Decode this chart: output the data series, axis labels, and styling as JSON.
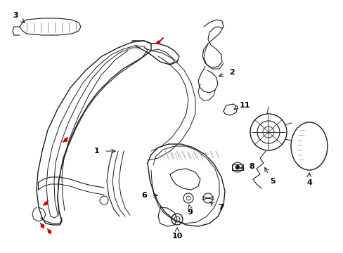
{
  "bg_color": "#ffffff",
  "line_color": "#1a1a1a",
  "red_color": "#cc0000",
  "label_color": "#000000",
  "figsize": [
    4.89,
    3.6
  ],
  "dpi": 100,
  "xlim": [
    0,
    489
  ],
  "ylim": [
    0,
    360
  ]
}
